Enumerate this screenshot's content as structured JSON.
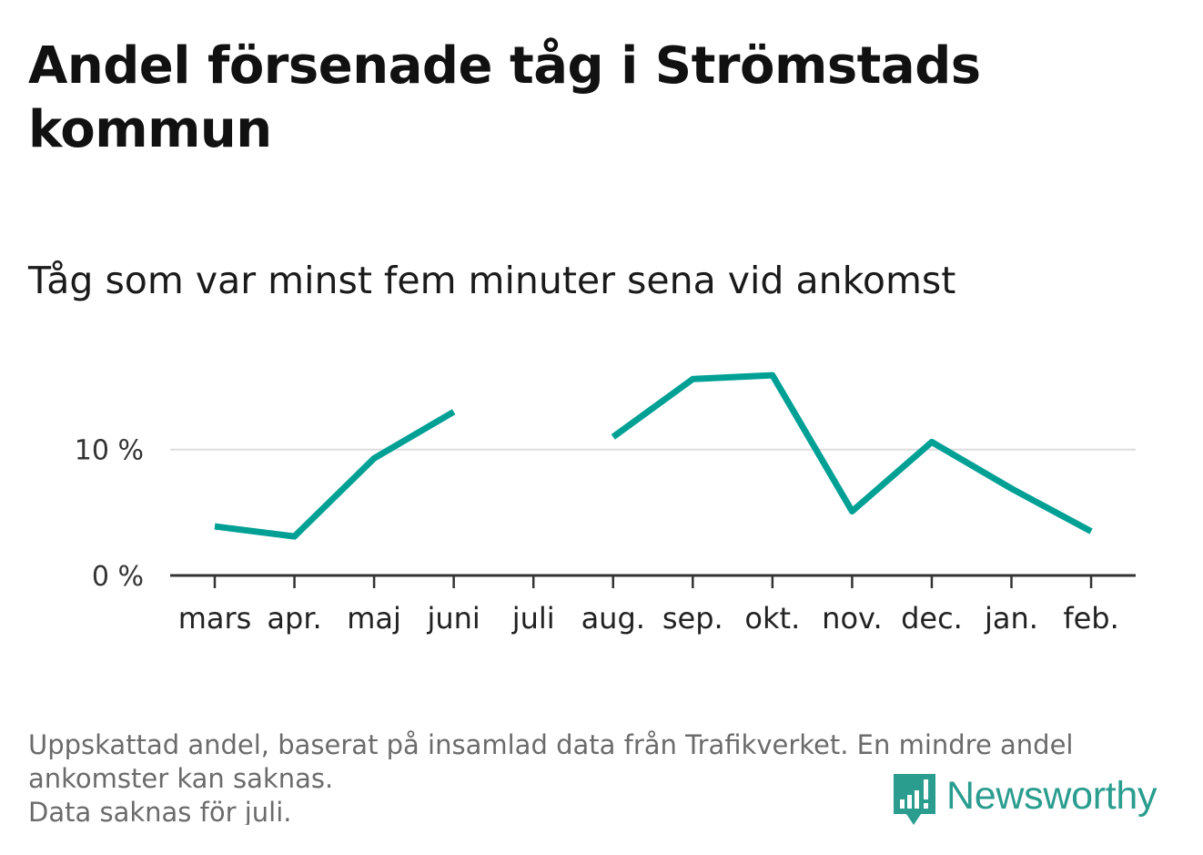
{
  "title": "Andel försenade tåg i Strömstads kommun",
  "subtitle": "Tåg som var minst fem minuter sena vid ankomst",
  "footer": {
    "line1": "Uppskattad andel, baserat på insamlad data från Trafikverket. En mindre andel ankomster kan saknas.",
    "line2": "Data saknas för juli."
  },
  "logo": {
    "text": "Newsworthy"
  },
  "colors": {
    "line": "#00a095",
    "grid": "#dddddd",
    "axis": "#333333",
    "logo": "#2a9d8f"
  },
  "chart_data": {
    "type": "line",
    "title": "Andel försenade tåg i Strömstads kommun",
    "subtitle": "Tåg som var minst fem minuter sena vid ankomst",
    "xlabel": "",
    "ylabel": "",
    "categories": [
      "mars",
      "apr.",
      "maj",
      "juni",
      "juli",
      "aug.",
      "sep.",
      "okt.",
      "nov.",
      "dec.",
      "jan.",
      "feb."
    ],
    "series": [
      {
        "name": "Andel försenade tåg",
        "values": [
          3.9,
          3.1,
          9.3,
          13.0,
          null,
          11.0,
          15.6,
          15.9,
          5.1,
          10.6,
          6.9,
          3.5
        ]
      }
    ],
    "ylim": [
      0,
      17.5
    ],
    "yticks": [
      0,
      10
    ],
    "ytick_labels": [
      "0 %",
      "10 %"
    ],
    "grid": true
  }
}
